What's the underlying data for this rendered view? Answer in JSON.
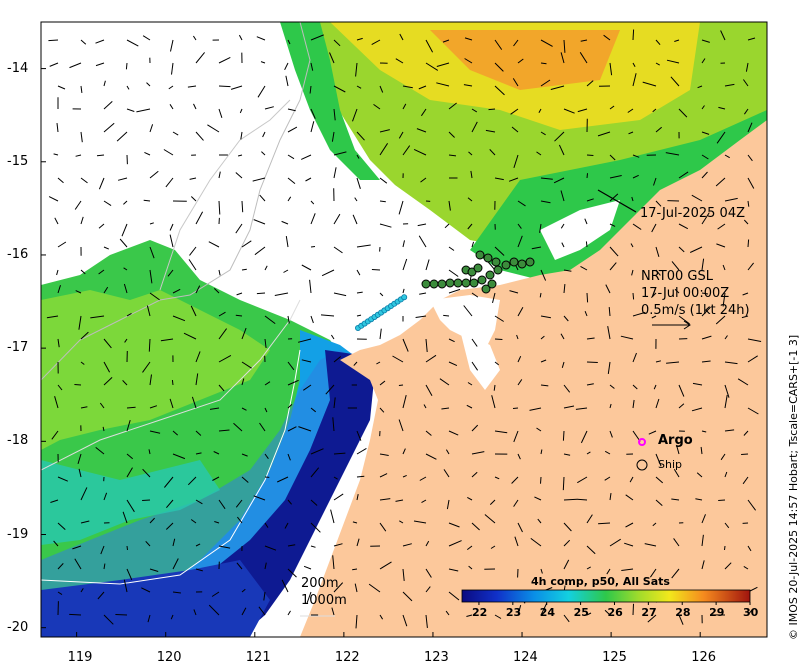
{
  "map": {
    "image_time_label": "17-Jul-2025 04Z",
    "current_source_label": "NRT00 GSL",
    "current_time_label": "17-Jul 00:00Z",
    "current_scale_label": "0.5m/s (1kt 24h)",
    "contour_200_label": "200m",
    "contour_1000_label": "1000m",
    "credit_text": "© IMOS 20-Jul-2025 14:57 Hobart; Tscale=CARS+[-1 3]",
    "legend": {
      "argo_label": "Argo",
      "ship_label": "Ship",
      "argo_color": "#ff00ff",
      "ship_color": "#000000"
    },
    "x_ticks": [
      "119",
      "120",
      "121",
      "122",
      "123",
      "124",
      "125",
      "126"
    ],
    "y_ticks": [
      "-14",
      "-15",
      "-16",
      "-17",
      "-18",
      "-19",
      "-20"
    ],
    "lon_range": [
      118.6,
      126.75
    ],
    "lat_range": [
      -20.1,
      -13.5
    ],
    "colorbar": {
      "title": "4h comp, p50, All Sats",
      "ticks": [
        "22",
        "23",
        "24",
        "25",
        "26",
        "27",
        "28",
        "29",
        "30"
      ],
      "range": [
        21.5,
        30
      ],
      "unit_hint": "degC"
    },
    "colors": {
      "land": "#fcc89b",
      "cloud": "#ffffff",
      "deep_blue": "#0a1a8a",
      "cyan": "#00c8e8",
      "green": "#3ec83c",
      "yellow": "#e8e020",
      "orange": "#f5a623"
    }
  }
}
